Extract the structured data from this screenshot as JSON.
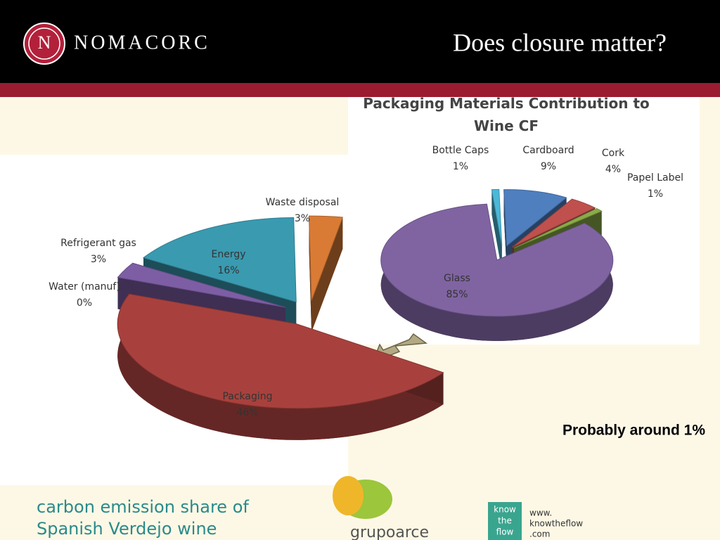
{
  "header": {
    "brand": "NOMACORC",
    "logo_letter": "N",
    "title": "Does closure matter?"
  },
  "chart_data": [
    {
      "type": "pie",
      "categories": [
        "Waste disposal",
        "Energy",
        "Refrigerant gas",
        "Water (manuf)",
        "Packaging"
      ],
      "values": [
        3,
        16,
        3,
        0,
        46
      ],
      "value_labels": [
        "3%",
        "16%",
        "3%",
        "0%",
        "46%"
      ],
      "colors": [
        "#d97b35",
        "#3a9ab0",
        "#7d5ea5",
        "#5a7a30",
        "#a8413d"
      ]
    },
    {
      "type": "pie",
      "title": "Packaging Materials Contribution to Wine CF",
      "categories": [
        "Bottle Caps",
        "Cardboard",
        "Cork",
        "Papel Label",
        "Glass"
      ],
      "values": [
        1,
        9,
        4,
        1,
        85
      ],
      "value_labels": [
        "1%",
        "9%",
        "4%",
        "1%",
        "85%"
      ],
      "colors": [
        "#4bb8d8",
        "#4f7fbf",
        "#c0504d",
        "#8aac48",
        "#8064a2"
      ]
    }
  ],
  "note": "Probably around 1%",
  "caption": [
    "carbon emission share of",
    "Spanish Verdejo wine"
  ],
  "logos": {
    "grupo": "grupoarce",
    "ktf": [
      "know",
      "the",
      "flow"
    ],
    "ktf_url": [
      "www.",
      "knowtheflow",
      ".com"
    ]
  }
}
